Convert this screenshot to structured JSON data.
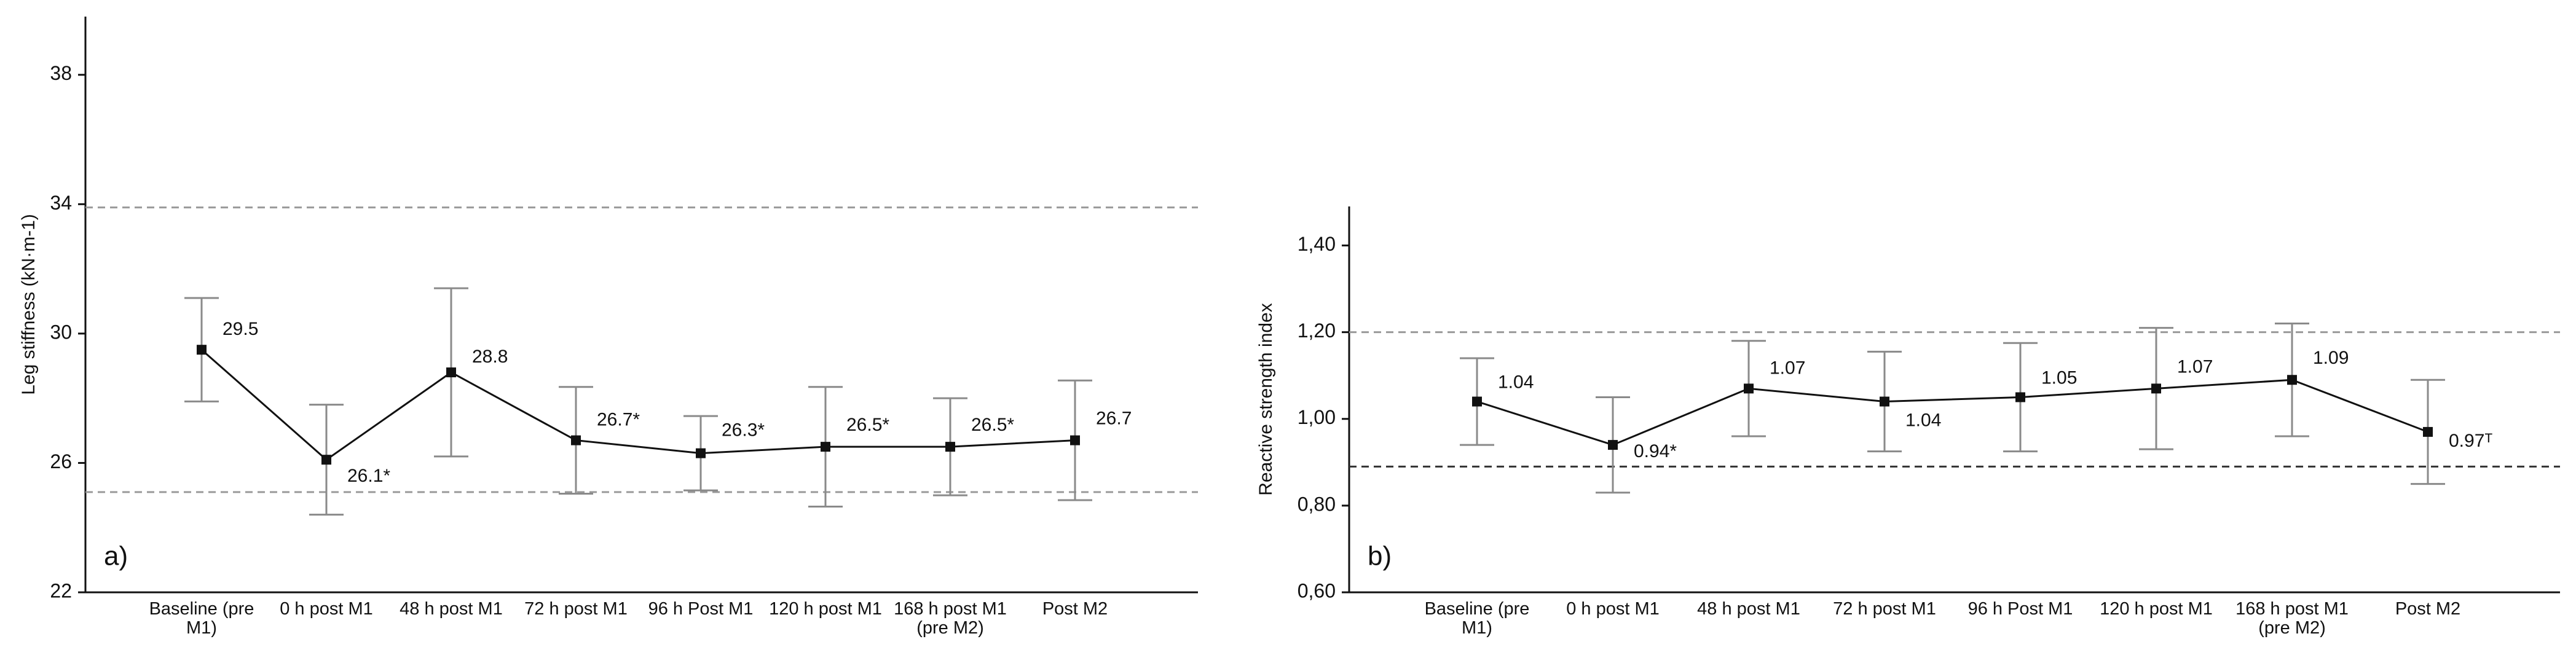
{
  "chart_data": [
    {
      "type": "line",
      "panel_label": "a)",
      "ylabel": "Leg stiffness (kN·m-1)",
      "categories": [
        "Baseline (pre M1)",
        "0 h post M1",
        "48 h post M1",
        "72 h post M1",
        "96 h Post M1",
        "120 h post M1",
        "168 h post M1 (pre M2)",
        "Post M2"
      ],
      "values": [
        29.5,
        26.1,
        28.8,
        26.7,
        26.3,
        26.5,
        26.5,
        26.7
      ],
      "errors": [
        1.6,
        1.7,
        2.6,
        1.65,
        1.15,
        1.85,
        1.5,
        1.85
      ],
      "value_labels": [
        "29.5",
        "26.1*",
        "28.8",
        "26.7*",
        "26.3*",
        "26.5*",
        "26.5*",
        "26.7"
      ],
      "color": "#111111",
      "error_color": "#8a8a8a",
      "reference_lines": [
        33.9,
        25.1
      ],
      "reference_colors": [
        "#9a9a9a",
        "#9a9a9a"
      ],
      "ylim": [
        22,
        39.8
      ],
      "yticks": [
        22,
        26,
        30,
        34,
        38
      ]
    },
    {
      "type": "line",
      "panel_label": "b)",
      "ylabel": "Reactive strength index",
      "categories": [
        "Baseline (pre M1)",
        "0 h post M1",
        "48 h post M1",
        "72 h post M1",
        "96 h Post M1",
        "120 h post M1",
        "168 h post M1 (pre M2)",
        "Post M2"
      ],
      "values": [
        1.04,
        0.94,
        1.07,
        1.04,
        1.05,
        1.07,
        1.09,
        0.97
      ],
      "errors": [
        0.1,
        0.11,
        0.11,
        0.115,
        0.125,
        0.14,
        0.13,
        0.12
      ],
      "value_labels": [
        "1.04",
        "0.94*",
        "1.07",
        "1.04",
        "1.05",
        "1.07",
        "1.09",
        "0.97ᵀ"
      ],
      "color": "#111111",
      "error_color": "#8a8a8a",
      "reference_lines": [
        1.2,
        0.89
      ],
      "reference_colors": [
        "#9a9a9a",
        "#333333"
      ],
      "ylim": [
        0.6,
        1.49
      ],
      "yticks": [
        {
          "value": 0.6,
          "label": "0,60"
        },
        {
          "value": 0.8,
          "label": "0,80"
        },
        {
          "value": 1.0,
          "label": "1,00"
        },
        {
          "value": 1.2,
          "label": "1,20"
        },
        {
          "value": 1.4,
          "label": "1,40"
        }
      ]
    }
  ]
}
